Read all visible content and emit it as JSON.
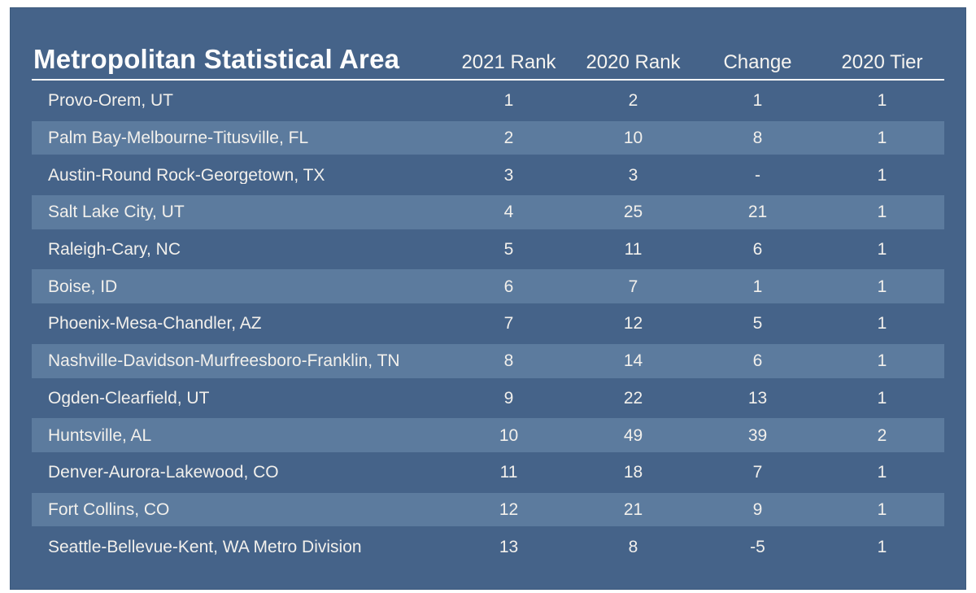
{
  "chart_data": {
    "type": "table",
    "title": "Metropolitan Statistical Area",
    "columns": [
      "2021 Rank",
      "2020 Rank",
      "Change",
      "2020 Tier"
    ],
    "rows": [
      {
        "msa": "Provo-Orem, UT",
        "values": [
          "1",
          "2",
          "1",
          "1"
        ]
      },
      {
        "msa": "Palm Bay-Melbourne-Titusville, FL",
        "values": [
          "2",
          "10",
          "8",
          "1"
        ]
      },
      {
        "msa": "Austin-Round Rock-Georgetown, TX",
        "values": [
          "3",
          "3",
          "-",
          "1"
        ]
      },
      {
        "msa": "Salt Lake City, UT",
        "values": [
          "4",
          "25",
          "21",
          "1"
        ]
      },
      {
        "msa": "Raleigh-Cary, NC",
        "values": [
          "5",
          "11",
          "6",
          "1"
        ]
      },
      {
        "msa": "Boise, ID",
        "values": [
          "6",
          "7",
          "1",
          "1"
        ]
      },
      {
        "msa": "Phoenix-Mesa-Chandler, AZ",
        "values": [
          "7",
          "12",
          "5",
          "1"
        ]
      },
      {
        "msa": "Nashville-Davidson-Murfreesboro-Franklin, TN",
        "values": [
          "8",
          "14",
          "6",
          "1"
        ]
      },
      {
        "msa": "Ogden-Clearfield, UT",
        "values": [
          "9",
          "22",
          "13",
          "1"
        ]
      },
      {
        "msa": "Huntsville, AL",
        "values": [
          "10",
          "49",
          "39",
          "2"
        ]
      },
      {
        "msa": "Denver-Aurora-Lakewood, CO",
        "values": [
          "11",
          "18",
          "7",
          "1"
        ]
      },
      {
        "msa": "Fort Collins, CO",
        "values": [
          "12",
          "21",
          "9",
          "1"
        ]
      },
      {
        "msa": "Seattle-Bellevue-Kent, WA Metro Division",
        "values": [
          "13",
          "8",
          "-5",
          "1"
        ]
      }
    ]
  },
  "colors": {
    "panel_background": "#456389",
    "panel_border": "#3d5a7c",
    "row_alt_background": "#5c7b9e",
    "divider": "#f8f8f8",
    "title_text": "#fdfdfd",
    "header_text": "#f6f4f0",
    "row_text": "#f2f0ec",
    "page_background": "#ffffff"
  }
}
